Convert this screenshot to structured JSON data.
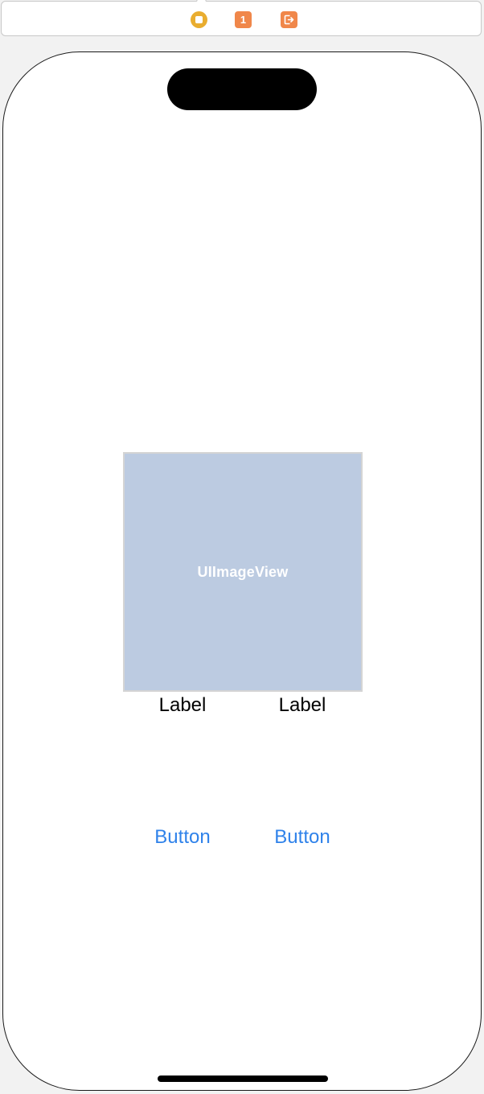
{
  "scene_dock": {
    "view_controller_icon": "view-controller-icon",
    "first_responder_icon": "first-responder-icon",
    "first_responder_glyph": "1",
    "exit_icon": "exit-icon",
    "colors": {
      "view_controller": "#e9ad2f",
      "first_responder": "#f0874a",
      "exit": "#f0874a"
    }
  },
  "canvas": {
    "image_view": {
      "placeholder_text": "UIImageView",
      "background_color": "#bccbe1"
    },
    "labels": [
      "Label",
      "Label"
    ],
    "buttons": [
      "Button",
      "Button"
    ],
    "button_tint": "#2f82ea"
  }
}
